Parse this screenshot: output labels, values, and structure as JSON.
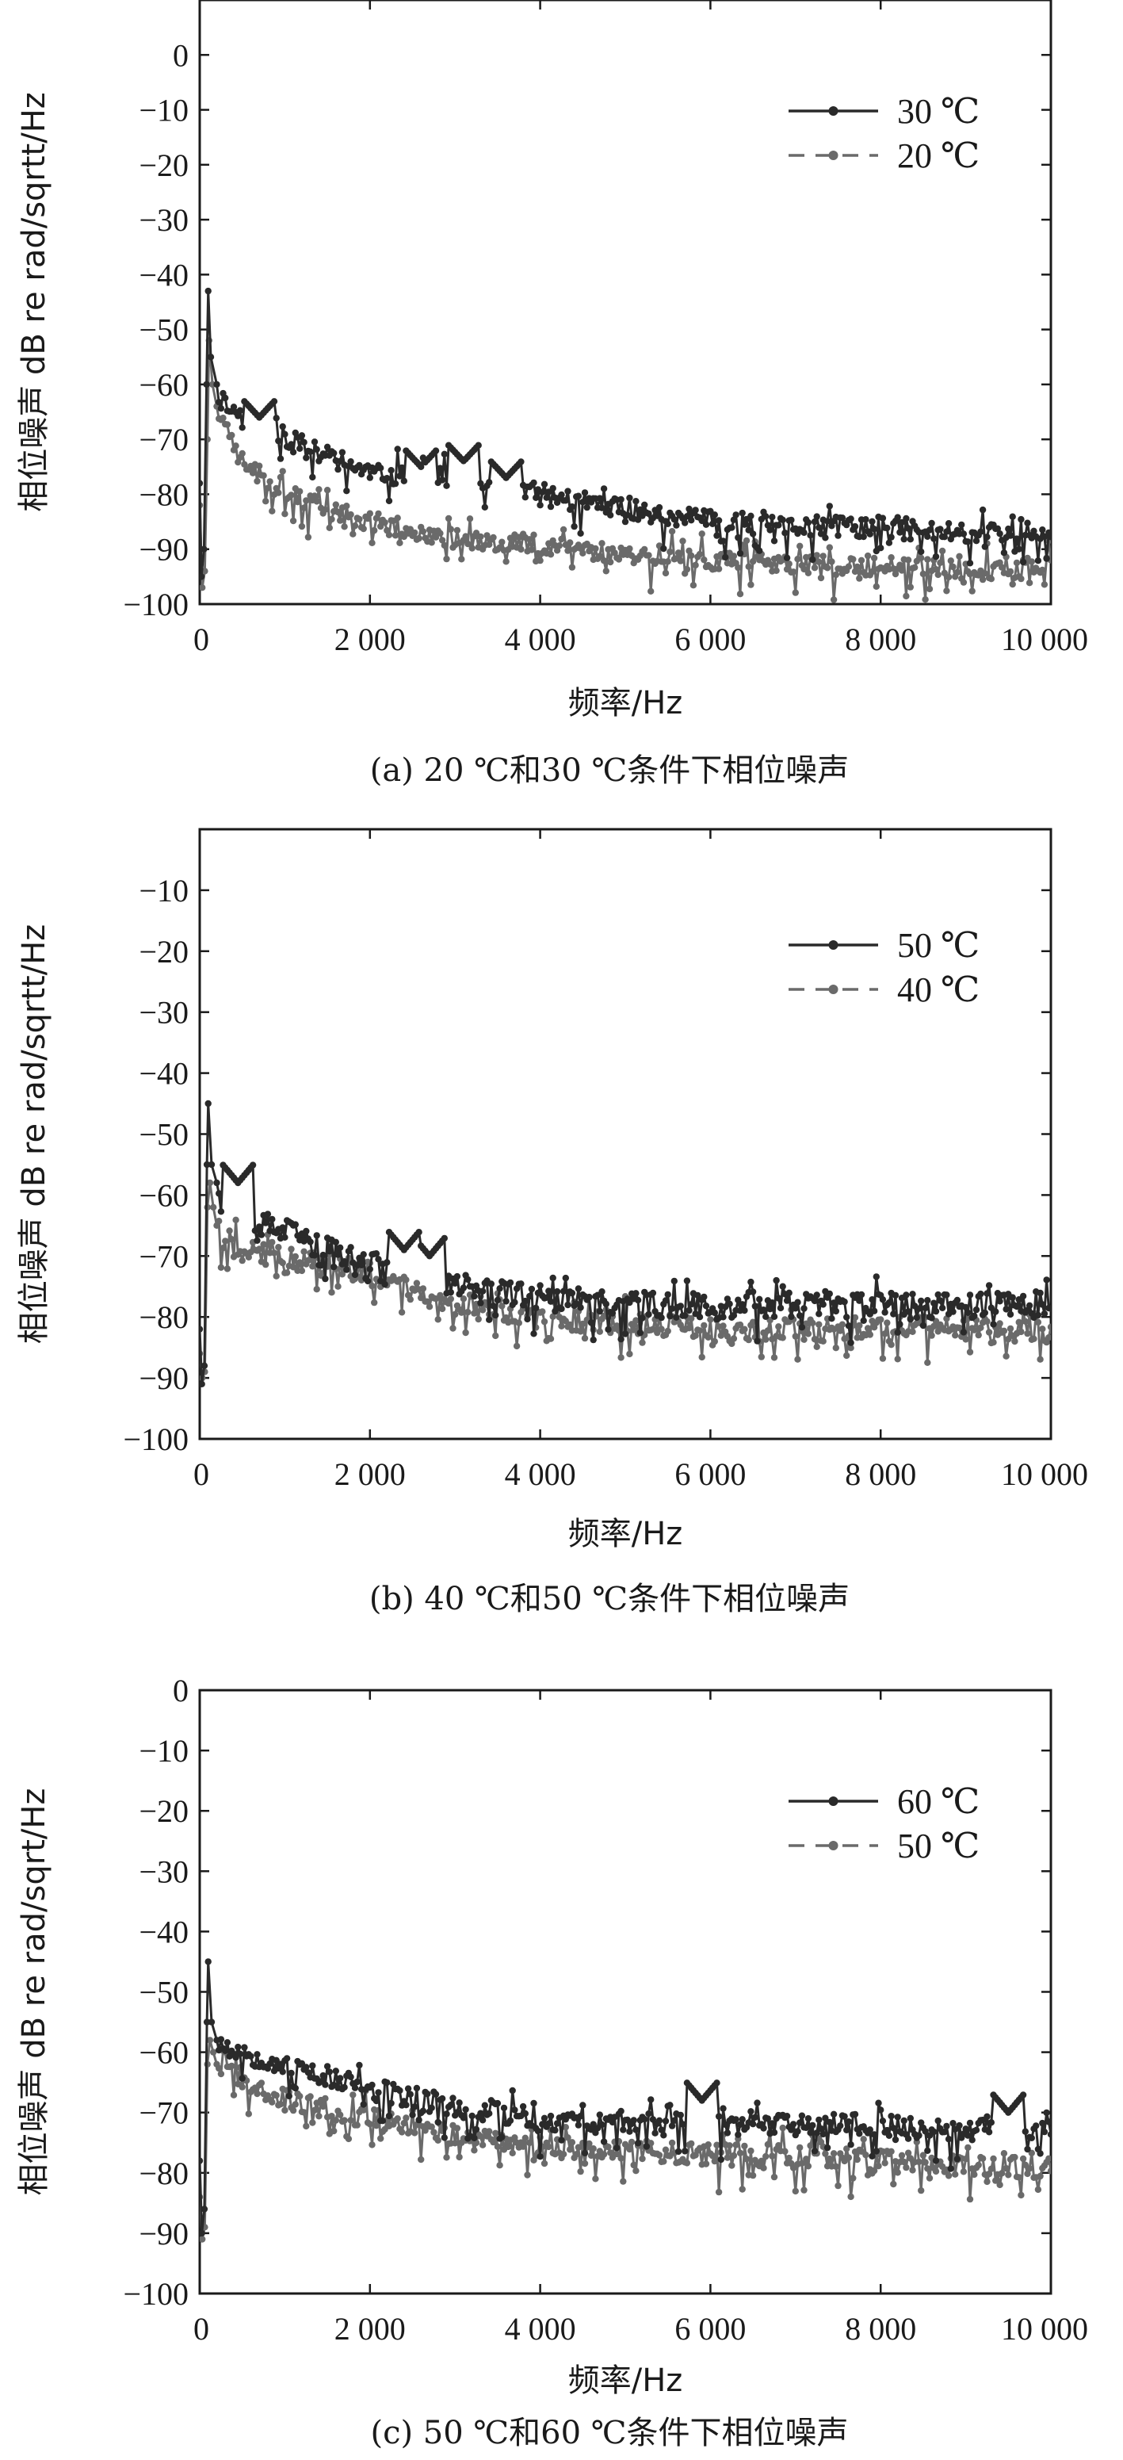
{
  "chart_data": [
    {
      "type": "line",
      "caption": "(a) 20 ℃和30 ℃条件下相位噪声",
      "xlabel": "频率/Hz",
      "ylabel": "相位噪声 dB re rad/sqrtt/Hz",
      "xlim": [
        0,
        10000
      ],
      "ylim": [
        -100,
        10
      ],
      "xticks": [
        0,
        2000,
        4000,
        6000,
        8000,
        10000
      ],
      "xtick_labels": [
        "0",
        "2 000",
        "4 000",
        "6 000",
        "8 000",
        "10 000"
      ],
      "yticks": [
        0,
        -10,
        -20,
        -30,
        -40,
        -50,
        -60,
        -70,
        -80,
        -90,
        -100
      ],
      "ytick_labels": [
        "0",
        "−10",
        "−20",
        "−30",
        "−40",
        "−50",
        "−60",
        "−70",
        "−80",
        "−90",
        "−100"
      ],
      "legend_position": "top-right",
      "series": [
        {
          "name": "30 ℃",
          "color": "#2a2a2a",
          "style": "solid",
          "spike": [
            [
              0,
              -78
            ],
            [
              20,
              -95
            ],
            [
              50,
              -90
            ],
            [
              80,
              -60
            ],
            [
              100,
              -43
            ],
            [
              130,
              -55
            ],
            [
              200,
              -60
            ]
          ],
          "curve": [
            [
              200,
              -62
            ],
            [
              500,
              -66
            ],
            [
              1000,
              -70
            ],
            [
              2000,
              -76
            ],
            [
              3000,
              -77
            ],
            [
              4000,
              -80
            ],
            [
              5000,
              -83
            ],
            [
              6000,
              -85
            ],
            [
              7000,
              -86
            ],
            [
              8000,
              -86
            ],
            [
              9000,
              -87
            ],
            [
              10000,
              -87
            ]
          ],
          "bumps": [
            [
              700,
              -66
            ],
            [
              2600,
              -75
            ],
            [
              3100,
              -74
            ],
            [
              3600,
              -77
            ]
          ],
          "noise": 2.0,
          "seed": 11
        },
        {
          "name": "20 ℃",
          "color": "#6a6a6a",
          "style": "dashed",
          "spike": [
            [
              0,
              -82
            ],
            [
              30,
              -97
            ],
            [
              60,
              -94
            ],
            [
              90,
              -70
            ],
            [
              110,
              -52
            ],
            [
              150,
              -60
            ],
            [
              200,
              -64
            ]
          ],
          "curve": [
            [
              200,
              -65
            ],
            [
              500,
              -74
            ],
            [
              1000,
              -80
            ],
            [
              2000,
              -85
            ],
            [
              3000,
              -88
            ],
            [
              4000,
              -89
            ],
            [
              5000,
              -91
            ],
            [
              6000,
              -92
            ],
            [
              7000,
              -93
            ],
            [
              8000,
              -93
            ],
            [
              9000,
              -94
            ],
            [
              10000,
              -93
            ]
          ],
          "bumps": [],
          "noise": 1.8,
          "seed": 23
        }
      ]
    },
    {
      "type": "line",
      "caption": "(b) 40 ℃和50 ℃条件下相位噪声",
      "xlabel": "频率/Hz",
      "ylabel": "相位噪声 dB re rad/sqrtt/Hz",
      "xlim": [
        0,
        10000
      ],
      "ylim": [
        -100,
        0
      ],
      "xticks": [
        0,
        2000,
        4000,
        6000,
        8000,
        10000
      ],
      "xtick_labels": [
        "0",
        "2 000",
        "4 000",
        "6 000",
        "8 000",
        "10 000"
      ],
      "yticks": [
        -10,
        -20,
        -30,
        -40,
        -50,
        -60,
        -70,
        -80,
        -90,
        -100
      ],
      "ytick_labels": [
        "−10",
        "−20",
        "−30",
        "−40",
        "−50",
        "−60",
        "−70",
        "−80",
        "−90",
        "−100"
      ],
      "legend_position": "top-right",
      "series": [
        {
          "name": "50 ℃",
          "color": "#2a2a2a",
          "style": "solid",
          "spike": [
            [
              0,
              -82
            ],
            [
              25,
              -91
            ],
            [
              55,
              -88
            ],
            [
              85,
              -55
            ],
            [
              100,
              -45
            ],
            [
              140,
              -55
            ],
            [
              200,
              -58
            ]
          ],
          "curve": [
            [
              200,
              -60
            ],
            [
              500,
              -64
            ],
            [
              1000,
              -66
            ],
            [
              2000,
              -72
            ],
            [
              3000,
              -75
            ],
            [
              4000,
              -77
            ],
            [
              5000,
              -78
            ],
            [
              6000,
              -78
            ],
            [
              7000,
              -78
            ],
            [
              8000,
              -78
            ],
            [
              9000,
              -78
            ],
            [
              10000,
              -78
            ]
          ],
          "bumps": [
            [
              450,
              -58
            ],
            [
              2400,
              -69
            ],
            [
              2700,
              -70
            ]
          ],
          "noise": 2.2,
          "seed": 37
        },
        {
          "name": "40 ℃",
          "color": "#6a6a6a",
          "style": "dashed",
          "spike": [
            [
              0,
              -86
            ],
            [
              30,
              -90
            ],
            [
              60,
              -89
            ],
            [
              90,
              -62
            ],
            [
              120,
              -58
            ],
            [
              160,
              -62
            ],
            [
              200,
              -65
            ]
          ],
          "curve": [
            [
              200,
              -66
            ],
            [
              500,
              -69
            ],
            [
              1000,
              -70
            ],
            [
              2000,
              -73
            ],
            [
              3000,
              -78
            ],
            [
              4000,
              -80
            ],
            [
              5000,
              -81
            ],
            [
              6000,
              -82
            ],
            [
              7000,
              -82
            ],
            [
              8000,
              -82
            ],
            [
              9000,
              -82
            ],
            [
              10000,
              -83
            ]
          ],
          "bumps": [],
          "noise": 2.0,
          "seed": 41
        }
      ]
    },
    {
      "type": "line",
      "caption": "(c) 50 ℃和60 ℃条件下相位噪声",
      "xlabel": "频率/Hz",
      "ylabel": "相位噪声 dB re rad/sqrt/Hz",
      "xlim": [
        0,
        10000
      ],
      "ylim": [
        -100,
        0
      ],
      "xticks": [
        0,
        2000,
        4000,
        6000,
        8000,
        10000
      ],
      "xtick_labels": [
        "0",
        "2 000",
        "4 000",
        "6 000",
        "8 000",
        "10 000"
      ],
      "yticks": [
        0,
        -10,
        -20,
        -30,
        -40,
        -50,
        -60,
        -70,
        -80,
        -90,
        -100
      ],
      "ytick_labels": [
        "0",
        "−10",
        "−20",
        "−30",
        "−40",
        "−50",
        "−60",
        "−70",
        "−80",
        "−90",
        "−100"
      ],
      "legend_position": "top-right",
      "series": [
        {
          "name": "60 ℃",
          "color": "#2a2a2a",
          "style": "solid",
          "spike": [
            [
              0,
              -78
            ],
            [
              25,
              -90
            ],
            [
              55,
              -86
            ],
            [
              85,
              -55
            ],
            [
              100,
              -45
            ],
            [
              140,
              -55
            ],
            [
              200,
              -58
            ]
          ],
          "curve": [
            [
              200,
              -58
            ],
            [
              500,
              -60
            ],
            [
              1000,
              -62
            ],
            [
              2000,
              -66
            ],
            [
              3000,
              -69
            ],
            [
              4000,
              -71
            ],
            [
              5000,
              -72
            ],
            [
              6000,
              -72
            ],
            [
              7000,
              -72
            ],
            [
              8000,
              -72
            ],
            [
              9000,
              -73
            ],
            [
              10000,
              -73
            ]
          ],
          "bumps": [
            [
              5900,
              -68
            ],
            [
              9500,
              -70
            ]
          ],
          "noise": 1.8,
          "seed": 53
        },
        {
          "name": "50 ℃",
          "color": "#6a6a6a",
          "style": "dashed",
          "spike": [
            [
              0,
              -84
            ],
            [
              30,
              -91
            ],
            [
              60,
              -89
            ],
            [
              90,
              -62
            ],
            [
              120,
              -58
            ],
            [
              160,
              -60
            ],
            [
              200,
              -62
            ]
          ],
          "curve": [
            [
              200,
              -62
            ],
            [
              500,
              -64
            ],
            [
              1000,
              -68
            ],
            [
              2000,
              -71
            ],
            [
              3000,
              -74
            ],
            [
              4000,
              -76
            ],
            [
              5000,
              -76
            ],
            [
              6000,
              -77
            ],
            [
              7000,
              -77
            ],
            [
              8000,
              -78
            ],
            [
              9000,
              -79
            ],
            [
              10000,
              -79
            ]
          ],
          "bumps": [],
          "noise": 1.8,
          "seed": 67
        }
      ]
    }
  ]
}
